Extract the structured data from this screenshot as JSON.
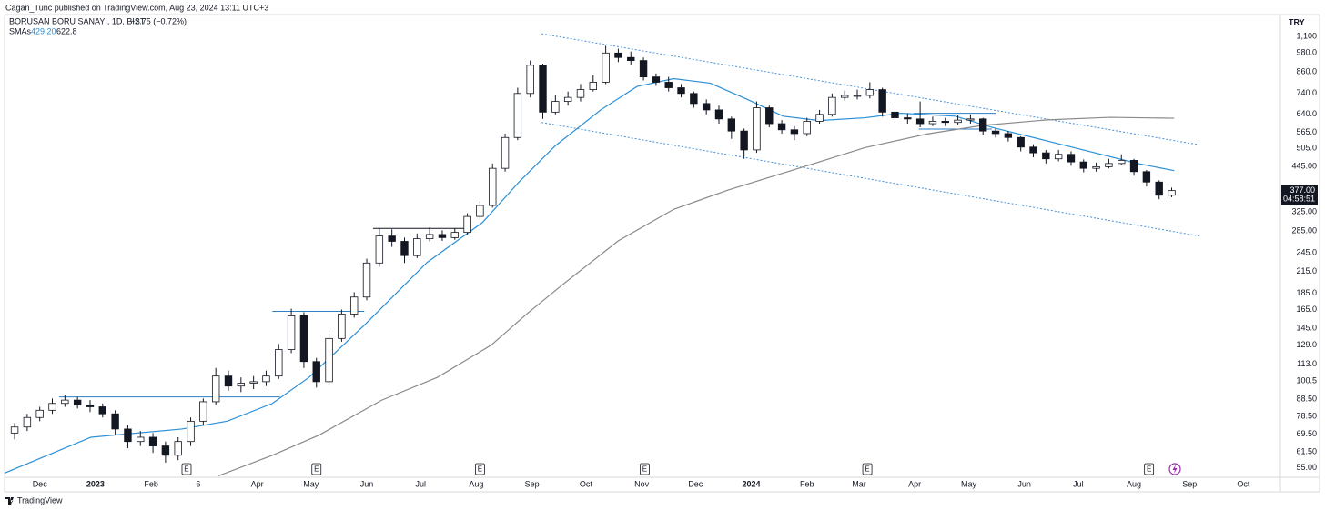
{
  "header": {
    "publisher": "Cagan_Tunc published on TradingView.com, Aug 23, 2024 13:11 UTC+3",
    "symbol": "BORUSAN BORU SANAYI, 1D, BIST",
    "change": "−2.75 (−0.72%)",
    "sma_label": "SMAs",
    "sma_fast": "429.20",
    "sma_slow": "622.8",
    "currency": "TRY",
    "brand": "TradingView"
  },
  "chart_data": {
    "type": "candlestick",
    "log_scale": true,
    "grid": false,
    "up_color": "#ffffff",
    "down_color": "#131722",
    "outline_color": "#131722",
    "x": [
      -2,
      -1,
      0,
      1,
      2,
      3,
      4,
      5,
      6,
      7,
      8,
      9,
      10,
      11,
      12,
      13,
      14,
      15,
      16,
      17,
      18,
      19,
      20,
      21,
      22,
      23,
      24,
      25,
      26,
      27,
      28,
      29,
      30,
      31,
      32,
      33,
      34,
      35,
      36,
      37,
      38,
      39,
      40,
      41,
      42,
      43,
      44,
      45,
      46,
      47,
      48,
      49,
      50,
      51,
      52,
      53,
      54,
      55,
      56,
      57,
      58,
      59,
      60,
      61,
      62,
      63,
      64,
      65,
      66,
      67,
      68,
      69,
      70,
      71,
      72,
      73,
      74,
      75,
      76,
      77,
      78,
      79,
      80,
      81,
      82,
      83,
      84,
      85,
      86,
      87,
      88,
      89,
      90
    ],
    "open": [
      70,
      73,
      78,
      82,
      86,
      88,
      85,
      84,
      80,
      72,
      66,
      68,
      64,
      60,
      66,
      76,
      87,
      104,
      97,
      99,
      100,
      104,
      125,
      158,
      115,
      100,
      135,
      160,
      180,
      228,
      275,
      265,
      240,
      270,
      278,
      272,
      282,
      315,
      340,
      440,
      545,
      740,
      900,
      650,
      700,
      720,
      760,
      800,
      980,
      950,
      930,
      830,
      800,
      770,
      740,
      690,
      660,
      620,
      570,
      500,
      670,
      600,
      575,
      560,
      610,
      640,
      720,
      730,
      730,
      760,
      650,
      625,
      620,
      600,
      610,
      605,
      615,
      620,
      570,
      560,
      545,
      510,
      490,
      470,
      485,
      460,
      440,
      445,
      455,
      465,
      430,
      400,
      365
    ],
    "high": [
      75,
      80,
      84,
      89,
      91,
      90,
      88,
      86,
      82,
      74,
      71,
      70,
      66,
      68,
      78,
      89,
      110,
      108,
      103,
      104,
      108,
      130,
      166,
      162,
      118,
      140,
      165,
      186,
      235,
      290,
      288,
      272,
      280,
      292,
      286,
      290,
      322,
      350,
      455,
      560,
      770,
      930,
      910,
      730,
      750,
      790,
      840,
      1030,
      1010,
      990,
      950,
      850,
      830,
      790,
      750,
      710,
      680,
      630,
      580,
      700,
      680,
      615,
      590,
      625,
      660,
      740,
      755,
      760,
      800,
      770,
      670,
      645,
      700,
      630,
      625,
      635,
      640,
      625,
      580,
      570,
      550,
      520,
      500,
      500,
      495,
      468,
      458,
      470,
      485,
      470,
      435,
      405,
      385
    ],
    "low": [
      67,
      71,
      76,
      80,
      84,
      83,
      81,
      78,
      69,
      63,
      64,
      61,
      57,
      58,
      64,
      74,
      85,
      94,
      93,
      95,
      97,
      102,
      122,
      110,
      96,
      98,
      132,
      156,
      176,
      222,
      255,
      228,
      236,
      265,
      266,
      268,
      278,
      310,
      335,
      430,
      535,
      720,
      620,
      640,
      680,
      700,
      750,
      790,
      920,
      900,
      810,
      780,
      750,
      720,
      670,
      640,
      600,
      540,
      470,
      490,
      585,
      560,
      535,
      550,
      600,
      630,
      705,
      710,
      715,
      630,
      605,
      600,
      585,
      590,
      590,
      595,
      600,
      555,
      545,
      530,
      495,
      475,
      455,
      462,
      448,
      428,
      430,
      440,
      450,
      418,
      388,
      355,
      360
    ],
    "close": [
      73,
      78,
      82,
      86,
      88,
      85,
      84,
      80,
      72,
      66,
      68,
      64,
      60,
      66,
      76,
      87,
      104,
      97,
      99,
      100,
      104,
      125,
      158,
      115,
      100,
      135,
      160,
      180,
      228,
      275,
      265,
      240,
      270,
      278,
      272,
      282,
      315,
      340,
      440,
      545,
      740,
      900,
      650,
      700,
      720,
      760,
      800,
      980,
      950,
      930,
      830,
      800,
      770,
      740,
      690,
      660,
      620,
      570,
      500,
      670,
      600,
      575,
      560,
      610,
      640,
      720,
      730,
      730,
      760,
      650,
      625,
      620,
      600,
      610,
      605,
      615,
      620,
      570,
      560,
      545,
      510,
      490,
      470,
      485,
      460,
      440,
      445,
      455,
      465,
      430,
      400,
      365,
      377
    ],
    "series": [
      {
        "color": "#2a8fd6",
        "x": [
          -2.8,
          4.07,
          11.3,
          14.9,
          18.5,
          21.4,
          25.8,
          30.8,
          35.2,
          38.1,
          41.0,
          44.6,
          47.5,
          50.4,
          53.3,
          56.2,
          59.1,
          62.0,
          65.6,
          68.5,
          72.8,
          75.7,
          80.1,
          83.7,
          87.3,
          90.2
        ],
        "values": [
          53,
          68,
          72,
          76,
          86,
          103,
          148,
          229,
          302,
          400,
          515,
          660,
          777,
          820,
          795,
          712,
          632,
          613,
          625,
          645,
          632,
          585,
          532,
          492,
          455,
          433
        ]
      },
      {
        "color": "#8a8a8a",
        "x": [
          14.2,
          18.5,
          22.2,
          27.2,
          31.6,
          35.9,
          38.8,
          41.7,
          46.0,
          50.4,
          54.7,
          60.5,
          65.6,
          70.6,
          75.0,
          80.1,
          85.1,
          90.2
        ],
        "values": [
          52,
          60,
          69,
          88,
          103,
          129,
          161,
          198,
          266,
          331,
          378,
          442,
          508,
          559,
          593,
          616,
          627,
          623
        ]
      }
    ],
    "drawings": [
      {
        "color": "#2a7fc7",
        "style": "solid",
        "x": [
          1.54,
          19.1
        ],
        "y": [
          90,
          90
        ]
      },
      {
        "color": "#2a7fc7",
        "style": "solid",
        "x": [
          18.5,
          25.8
        ],
        "y": [
          163,
          163
        ]
      },
      {
        "color": "#131722",
        "style": "solid",
        "x": [
          26.5,
          33.7
        ],
        "y": [
          290,
          290
        ]
      },
      {
        "color": "#2a7fc7",
        "style": "solid",
        "x": [
          69.5,
          76.0
        ],
        "y": [
          645,
          645
        ]
      },
      {
        "color": "#2a7fc7",
        "style": "solid",
        "x": [
          69.9,
          75.7
        ],
        "y": [
          578,
          578
        ]
      },
      {
        "color": "#4a90d9",
        "style": "dotted",
        "x": [
          39.9,
          92.2
        ],
        "y": [
          1120,
          518
        ]
      },
      {
        "color": "#4a90d9",
        "style": "dotted",
        "x": [
          39.9,
          92.2
        ],
        "y": [
          605,
          275
        ]
      }
    ],
    "events": [
      {
        "x": 11.67,
        "label": "E"
      },
      {
        "x": 22.0,
        "label": "E"
      },
      {
        "x": 35.0,
        "label": "E"
      },
      {
        "x": 48.1,
        "label": "E"
      },
      {
        "x": 65.8,
        "label": "E"
      },
      {
        "x": 88.2,
        "label": "E"
      }
    ],
    "last_price": {
      "value": 377,
      "label": "377.00"
    },
    "countdown": "04:58:51",
    "xlim": [
      -2.8,
      98.5
    ],
    "ylim": [
      51.5,
      1280
    ],
    "xticks": [
      {
        "value": 0,
        "label": "Dec"
      },
      {
        "value": 4.43,
        "label": "2023"
      },
      {
        "value": 8.86,
        "label": "Feb"
      },
      {
        "value": 12.6,
        "label": "6"
      },
      {
        "value": 17.29,
        "label": "Apr"
      },
      {
        "value": 21.57,
        "label": "May"
      },
      {
        "value": 26,
        "label": "Jun"
      },
      {
        "value": 30.29,
        "label": "Jul"
      },
      {
        "value": 34.71,
        "label": "Aug"
      },
      {
        "value": 39.14,
        "label": "Sep"
      },
      {
        "value": 43.43,
        "label": "Oct"
      },
      {
        "value": 47.86,
        "label": "Nov"
      },
      {
        "value": 52.14,
        "label": "Dec"
      },
      {
        "value": 56.57,
        "label": "2024"
      },
      {
        "value": 61,
        "label": "Feb"
      },
      {
        "value": 65.14,
        "label": "Mar"
      },
      {
        "value": 69.57,
        "label": "Apr"
      },
      {
        "value": 73.86,
        "label": "May"
      },
      {
        "value": 78.29,
        "label": "Jun"
      },
      {
        "value": 82.57,
        "label": "Jul"
      },
      {
        "value": 87,
        "label": "Aug"
      },
      {
        "value": 91.43,
        "label": "Sep"
      },
      {
        "value": 95.71,
        "label": "Oct"
      }
    ],
    "yticks": [
      {
        "value": 1100,
        "label": "1,100"
      },
      {
        "value": 980,
        "label": "980.0"
      },
      {
        "value": 860,
        "label": "860.0"
      },
      {
        "value": 740,
        "label": "740.0"
      },
      {
        "value": 640,
        "label": "640.0"
      },
      {
        "value": 565,
        "label": "565.0"
      },
      {
        "value": 505,
        "label": "505.0"
      },
      {
        "value": 445,
        "label": "445.00"
      },
      {
        "value": 325,
        "label": "325.00"
      },
      {
        "value": 285,
        "label": "285.00"
      },
      {
        "value": 245,
        "label": "245.0"
      },
      {
        "value": 215,
        "label": "215.0"
      },
      {
        "value": 185,
        "label": "185.0"
      },
      {
        "value": 165,
        "label": "165.0"
      },
      {
        "value": 145,
        "label": "145.0"
      },
      {
        "value": 129,
        "label": "129.0"
      },
      {
        "value": 113,
        "label": "113.0"
      },
      {
        "value": 100.5,
        "label": "100.5"
      },
      {
        "value": 88.5,
        "label": "88.50"
      },
      {
        "value": 78.5,
        "label": "78.50"
      },
      {
        "value": 69.5,
        "label": "69.50"
      },
      {
        "value": 61.5,
        "label": "61.50"
      },
      {
        "value": 55,
        "label": "55.00"
      }
    ]
  }
}
